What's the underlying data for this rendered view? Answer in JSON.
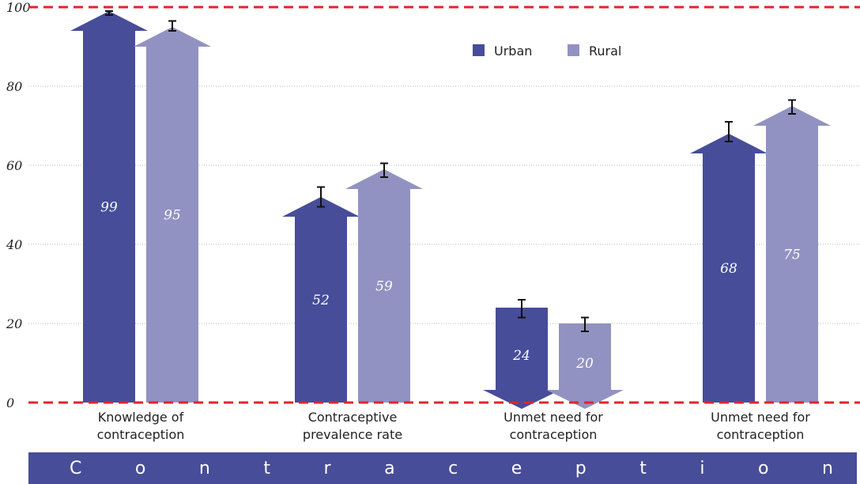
{
  "chart_data": {
    "type": "bar",
    "categories": [
      [
        "Knowledge of",
        "contraception"
      ],
      [
        "Contraceptive",
        "prevalence rate"
      ],
      [
        "Unmet need for",
        "contraception"
      ],
      [
        "Unmet need for",
        "contraception"
      ]
    ],
    "directions": [
      "up",
      "up",
      "down",
      "up"
    ],
    "series": [
      {
        "name": "Urban",
        "color": "#474d98",
        "values": [
          99,
          52,
          24,
          68
        ],
        "errors": [
          [
            98,
            99
          ],
          [
            49.5,
            54.5
          ],
          [
            21.5,
            26
          ],
          [
            66,
            71
          ]
        ]
      },
      {
        "name": "Rural",
        "color": "#9292c2",
        "values": [
          95,
          59,
          20,
          75
        ],
        "errors": [
          [
            94,
            96.5
          ],
          [
            57,
            60.5
          ],
          [
            18,
            21.5
          ],
          [
            73,
            76.5
          ]
        ]
      }
    ],
    "ylim": [
      0,
      100
    ],
    "yticks": [
      "0",
      "20",
      "40",
      "60",
      "80",
      "100"
    ],
    "reference_lines": [
      0,
      100
    ],
    "reference_line_color": "#e2242b",
    "grid": "horizontal dotted",
    "legend": "top-center",
    "title": "",
    "xlabel": "",
    "ylabel": ""
  },
  "footer": {
    "letters": [
      "C",
      "o",
      "n",
      "t",
      "r",
      "a",
      "c",
      "e",
      "p",
      "t",
      "i",
      "o",
      "n"
    ],
    "color": "#474d98"
  }
}
